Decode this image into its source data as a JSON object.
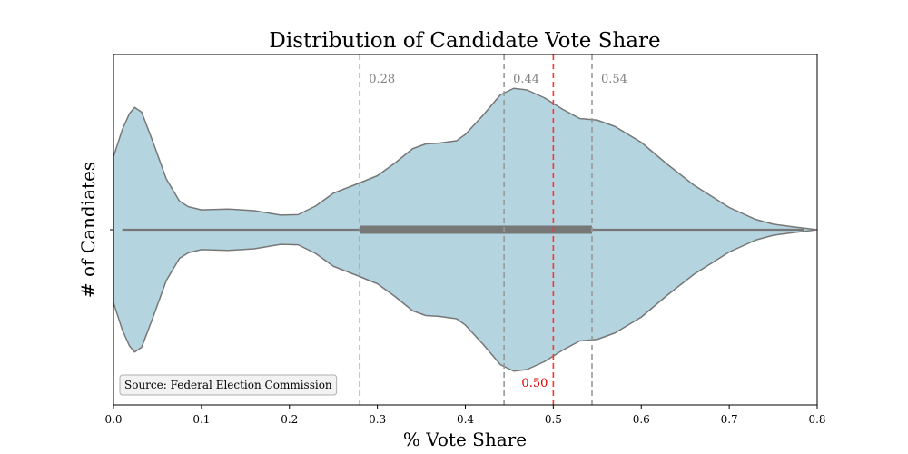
{
  "chart_data": {
    "type": "violin",
    "title": "Distribution of Candidate Vote Share",
    "xlabel": "% Vote Share",
    "ylabel": "# of Candiates",
    "xlim": [
      0.0,
      0.8
    ],
    "x_ticks": [
      "0.0",
      "0.1",
      "0.2",
      "0.3",
      "0.4",
      "0.5",
      "0.6",
      "0.7",
      "0.8"
    ],
    "x_tick_values": [
      0.0,
      0.1,
      0.2,
      0.3,
      0.4,
      0.5,
      0.6,
      0.7,
      0.8
    ],
    "whisker": [
      0.01,
      0.785
    ],
    "iqr": [
      0.28,
      0.544
    ],
    "density_profile": {
      "x": [
        0.0,
        0.01,
        0.018,
        0.024,
        0.032,
        0.045,
        0.06,
        0.075,
        0.085,
        0.1,
        0.13,
        0.16,
        0.19,
        0.21,
        0.23,
        0.25,
        0.28,
        0.3,
        0.32,
        0.34,
        0.355,
        0.37,
        0.39,
        0.4,
        0.42,
        0.44,
        0.455,
        0.47,
        0.49,
        0.51,
        0.53,
        0.55,
        0.57,
        0.6,
        0.63,
        0.66,
        0.7,
        0.73,
        0.75,
        0.77,
        0.8
      ],
      "density": [
        0.46,
        0.63,
        0.73,
        0.77,
        0.74,
        0.55,
        0.32,
        0.18,
        0.145,
        0.125,
        0.13,
        0.12,
        0.092,
        0.095,
        0.15,
        0.23,
        0.295,
        0.34,
        0.42,
        0.51,
        0.54,
        0.545,
        0.56,
        0.6,
        0.72,
        0.85,
        0.89,
        0.88,
        0.83,
        0.76,
        0.7,
        0.69,
        0.65,
        0.55,
        0.41,
        0.28,
        0.14,
        0.065,
        0.035,
        0.02,
        0.0
      ]
    },
    "reference_lines": [
      {
        "x": 0.28,
        "label": "0.28",
        "color": "#999999",
        "label_color": "#808080",
        "label_position": "top"
      },
      {
        "x": 0.444,
        "label": "0.44",
        "color": "#999999",
        "label_color": "#808080",
        "label_position": "top"
      },
      {
        "x": 0.544,
        "label": "0.54",
        "color": "#999999",
        "label_color": "#808080",
        "label_position": "top"
      },
      {
        "x": 0.5,
        "label": "0.50",
        "color": "#ff3333",
        "label_color": "#dd0000",
        "label_position": "bottom"
      }
    ],
    "annotation": "Source: Federal Election Commission",
    "fill_color": "#b4d5e0",
    "edge_color": "#777777",
    "box_color": "#777777",
    "grid": false
  }
}
